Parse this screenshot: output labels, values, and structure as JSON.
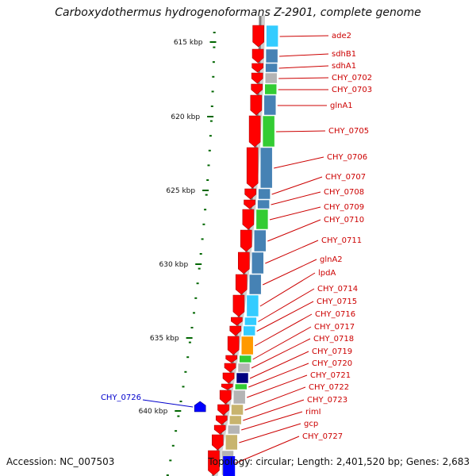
{
  "title": "Carboxydothermus hydrogenoformans Z-2901, complete genome",
  "footer": {
    "accession": "Accession: NC_007503",
    "summary": "Topology: circular; Length: 2,401,520 bp; Genes: 2,683"
  },
  "scale_labels": [
    "615 kbp",
    "620 kbp",
    "625 kbp",
    "630 kbp",
    "635 kbp",
    "640 kbp"
  ],
  "forward_genes": [
    {
      "name": "ade2",
      "color": "#33ccff"
    },
    {
      "name": "sdhB1",
      "color": "#4682b4"
    },
    {
      "name": "sdhA1",
      "color": "#4682b4"
    },
    {
      "name": "CHY_0702",
      "color": "#b4b4b4"
    },
    {
      "name": "CHY_0703",
      "color": "#33cc33"
    },
    {
      "name": "glnA1",
      "color": "#4682b4"
    },
    {
      "name": "CHY_0705",
      "color": "#33cc33"
    },
    {
      "name": "CHY_0706",
      "color": "#4682b4"
    },
    {
      "name": "CHY_0707",
      "color": "#4682b4"
    },
    {
      "name": "CHY_0708",
      "color": "#4682b4"
    },
    {
      "name": "CHY_0709",
      "color": "#33cc33"
    },
    {
      "name": "CHY_0710",
      "color": "#4682b4"
    },
    {
      "name": "CHY_0711",
      "color": "#4682b4"
    },
    {
      "name": "glnA2",
      "color": "#4682b4"
    },
    {
      "name": "lpdA",
      "color": "#33ccff"
    },
    {
      "name": "CHY_0714",
      "color": "#33ccff"
    },
    {
      "name": "CHY_0715",
      "color": "#33ccff"
    },
    {
      "name": "CHY_0716",
      "color": "#ff9900"
    },
    {
      "name": "CHY_0717",
      "color": "#33cc33"
    },
    {
      "name": "CHY_0718",
      "color": "#b4b4b4"
    },
    {
      "name": "CHY_0719",
      "color": "#000080"
    },
    {
      "name": "CHY_0720",
      "color": "#33cc33"
    },
    {
      "name": "CHY_0721",
      "color": "#b4b4b4"
    },
    {
      "name": "CHY_0722",
      "color": "#c8b46e"
    },
    {
      "name": "CHY_0723",
      "color": "#c8b46e"
    },
    {
      "name": "rimI",
      "color": "#b4b4b4"
    },
    {
      "name": "gcp",
      "color": "#c8b46e"
    },
    {
      "name": "CHY_0727",
      "color": "#b4b4b4"
    }
  ],
  "reverse_genes": [
    {
      "name": "CHY_0726",
      "color": "#0000ff"
    }
  ],
  "colors": {
    "forward_strand": "#ff0000",
    "reverse_strand": "#0000ff",
    "label_line_forward": "#cc0000",
    "label_line_reverse": "#0000cc",
    "scale_ticks": "#006600",
    "backbone": "#808080"
  }
}
